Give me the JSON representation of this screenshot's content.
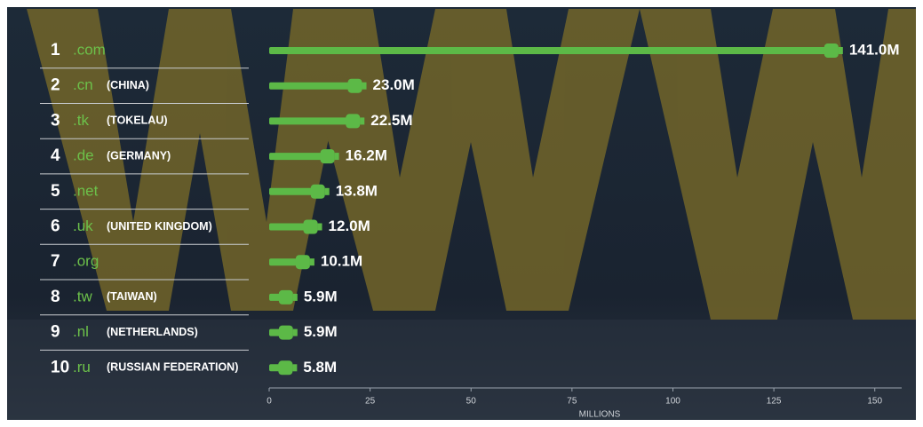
{
  "chart_data": {
    "type": "bar",
    "orientation": "horizontal",
    "ranks": [
      1,
      2,
      3,
      4,
      5,
      6,
      7,
      8,
      9,
      10
    ],
    "categories": [
      ".com",
      ".cn",
      ".tk",
      ".de",
      ".net",
      ".uk",
      ".org",
      ".tw",
      ".nl",
      ".ru"
    ],
    "countries": [
      null,
      "(CHINA)",
      "(TOKELAU)",
      "(GERMANY)",
      null,
      "(UNITED KINGDOM)",
      null,
      "(TAIWAN)",
      "(NETHERLANDS)",
      "(RUSSIAN FEDERATION)"
    ],
    "values": [
      141.0,
      23.0,
      22.5,
      16.2,
      13.8,
      12.0,
      10.1,
      5.9,
      5.9,
      5.8
    ],
    "value_labels": [
      "141.0M",
      "23.0M",
      "22.5M",
      "16.2M",
      "13.8M",
      "12.0M",
      "10.1M",
      "5.9M",
      "5.9M",
      "5.8M"
    ],
    "color": "#5cb947",
    "xlim": [
      0,
      156
    ],
    "xticks": [
      0,
      25,
      50,
      75,
      100,
      125,
      150
    ],
    "xlabel": "MILLIONS"
  }
}
